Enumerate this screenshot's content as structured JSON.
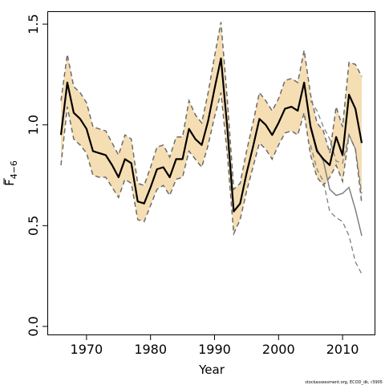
{
  "chart_data": {
    "type": "line",
    "xlabel": "Year",
    "ylabel": "F",
    "ylabel_subscript": "4−6",
    "credit": "stockassessment.org, ECOD_dk, r3905",
    "xlim": [
      1964,
      2015
    ],
    "ylim": [
      -0.04,
      1.56
    ],
    "x_ticks": [
      1970,
      1980,
      1990,
      2000,
      2010
    ],
    "y_ticks": [
      0.0,
      0.5,
      1.0,
      1.5
    ],
    "y_tick_labels": [
      "0.0",
      "0.5",
      "1.0",
      "1.5"
    ],
    "colors": {
      "band": "#f5deb3",
      "estimate": "#000000",
      "bounds": "#6b6b6b",
      "retro": "#808080"
    },
    "estimate": {
      "x": [
        1966,
        1967,
        1968,
        1969,
        1970,
        1971,
        1972,
        1973,
        1974,
        1975,
        1976,
        1977,
        1978,
        1979,
        1980,
        1981,
        1982,
        1983,
        1984,
        1985,
        1986,
        1987,
        1988,
        1989,
        1990,
        1991,
        1992,
        1993,
        1994,
        1995,
        1996,
        1997,
        1998,
        1999,
        2000,
        2001,
        2002,
        2003,
        2004,
        2005,
        2006,
        2007,
        2008,
        2009,
        2010,
        2011,
        2012,
        2013
      ],
      "y": [
        0.95,
        1.21,
        1.06,
        1.03,
        0.98,
        0.87,
        0.86,
        0.85,
        0.8,
        0.74,
        0.83,
        0.81,
        0.62,
        0.61,
        0.69,
        0.78,
        0.79,
        0.74,
        0.83,
        0.83,
        0.98,
        0.93,
        0.9,
        1.02,
        1.18,
        1.33,
        0.98,
        0.57,
        0.61,
        0.76,
        0.89,
        1.03,
        1.0,
        0.95,
        1.01,
        1.08,
        1.09,
        1.07,
        1.21,
        0.99,
        0.87,
        0.83,
        0.8,
        0.94,
        0.85,
        1.15,
        1.08,
        0.91
      ]
    },
    "lower": {
      "x": [
        1966,
        1967,
        1968,
        1969,
        1970,
        1971,
        1972,
        1973,
        1974,
        1975,
        1976,
        1977,
        1978,
        1979,
        1980,
        1981,
        1982,
        1983,
        1984,
        1985,
        1986,
        1987,
        1988,
        1989,
        1990,
        1991,
        1992,
        1993,
        1994,
        1995,
        1996,
        1997,
        1998,
        1999,
        2000,
        2001,
        2002,
        2003,
        2004,
        2005,
        2006,
        2007,
        2008,
        2009,
        2010,
        2011,
        2012,
        2013
      ],
      "y": [
        0.8,
        1.09,
        0.93,
        0.9,
        0.86,
        0.75,
        0.74,
        0.74,
        0.69,
        0.64,
        0.73,
        0.71,
        0.53,
        0.52,
        0.6,
        0.68,
        0.7,
        0.65,
        0.73,
        0.74,
        0.87,
        0.83,
        0.79,
        0.9,
        1.04,
        1.16,
        0.85,
        0.46,
        0.53,
        0.67,
        0.79,
        0.91,
        0.88,
        0.83,
        0.9,
        0.96,
        0.97,
        0.95,
        1.06,
        0.85,
        0.74,
        0.7,
        0.74,
        0.8,
        0.72,
        0.95,
        0.88,
        0.61
      ]
    },
    "upper": {
      "x": [
        1966,
        1967,
        1968,
        1969,
        1970,
        1971,
        1972,
        1973,
        1974,
        1975,
        1976,
        1977,
        1978,
        1979,
        1980,
        1981,
        1982,
        1983,
        1984,
        1985,
        1986,
        1987,
        1988,
        1989,
        1990,
        1991,
        1992,
        1993,
        1994,
        1995,
        1996,
        1997,
        1998,
        1999,
        2000,
        2001,
        2002,
        2003,
        2004,
        2005,
        2006,
        2007,
        2008,
        2009,
        2010,
        2011,
        2012,
        2013
      ],
      "y": [
        1.12,
        1.35,
        1.19,
        1.16,
        1.11,
        0.99,
        0.98,
        0.97,
        0.91,
        0.85,
        0.95,
        0.93,
        0.71,
        0.7,
        0.79,
        0.89,
        0.9,
        0.84,
        0.94,
        0.94,
        1.12,
        1.05,
        1.01,
        1.16,
        1.34,
        1.51,
        1.12,
        0.68,
        0.71,
        0.87,
        1.01,
        1.16,
        1.12,
        1.07,
        1.13,
        1.22,
        1.23,
        1.21,
        1.37,
        1.15,
        1.01,
        0.97,
        0.86,
        1.09,
        0.99,
        1.31,
        1.3,
        1.24
      ]
    },
    "retro_lower": {
      "x": [
        2005,
        2006,
        2007,
        2008,
        2009,
        2010,
        2011,
        2012,
        2013
      ],
      "y": [
        0.9,
        0.78,
        0.72,
        0.57,
        0.54,
        0.52,
        0.45,
        0.32,
        0.26
      ]
    },
    "retro_center": {
      "x": [
        2004,
        2005,
        2006,
        2007,
        2008,
        2009,
        2010,
        2011,
        2012,
        2013
      ],
      "y": [
        1.21,
        1.0,
        0.88,
        0.82,
        0.68,
        0.65,
        0.66,
        0.69,
        0.58,
        0.45
      ]
    },
    "retro_upper": {
      "x": [
        2005,
        2006,
        2007,
        2008,
        2009,
        2010,
        2011,
        2012,
        2013
      ],
      "y": [
        1.12,
        1.07,
        0.99,
        0.93,
        0.82,
        0.81,
        0.95,
        0.88,
        0.66
      ]
    }
  }
}
